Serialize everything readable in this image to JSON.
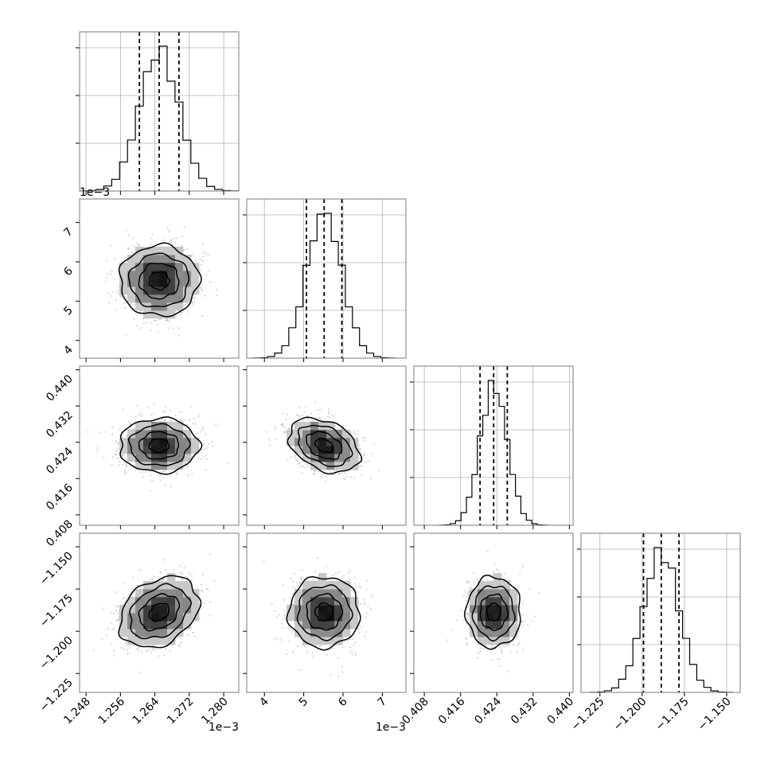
{
  "chart_data": {
    "type": "corner",
    "grid": true,
    "colors": {
      "ink": "#000000",
      "grid": "#b0b0b0",
      "samples": "#9a9a9a"
    },
    "parameters": [
      {
        "range": [
          1.2465,
          1.2835
        ],
        "mean": 1.265,
        "sd": 0.0046,
        "quantiles": [
          1.2604,
          1.265,
          1.2696
        ],
        "ticks": [
          1.248,
          1.256,
          1.264,
          1.272,
          1.28
        ],
        "tick_labels": [
          "1.248",
          "1.256",
          "1.264",
          "1.272",
          "1.280"
        ],
        "offset_text": "1e−3"
      },
      {
        "range": [
          3.55,
          7.6
        ],
        "mean": 5.52,
        "sd": 0.45,
        "quantiles": [
          5.07,
          5.52,
          5.97
        ],
        "ticks": [
          4,
          5,
          6,
          7
        ],
        "tick_labels": [
          "4",
          "5",
          "6",
          "7"
        ],
        "offset_text": "1e−3"
      },
      {
        "range": [
          0.4057,
          0.4408
        ],
        "mean": 0.4233,
        "sd": 0.003,
        "quantiles": [
          0.4203,
          0.4233,
          0.4263
        ],
        "ticks": [
          0.408,
          0.416,
          0.424,
          0.432,
          0.44
        ],
        "tick_labels": [
          "0.408",
          "0.416",
          "0.424",
          "0.432",
          "0.440"
        ]
      },
      {
        "range": [
          -1.2362,
          -1.142
        ],
        "mean": -1.1887,
        "sd": 0.0105,
        "quantiles": [
          -1.1992,
          -1.1887,
          -1.1782
        ],
        "ticks": [
          -1.225,
          -1.2,
          -1.175,
          -1.15
        ],
        "tick_labels": [
          "−1.225",
          "−1.200",
          "−1.175",
          "−1.150"
        ]
      }
    ],
    "correlations": [
      [
        1.0,
        0.0,
        0.0,
        0.3
      ],
      [
        0.0,
        1.0,
        -0.35,
        0.0
      ],
      [
        0.0,
        -0.35,
        1.0,
        0.0
      ],
      [
        0.3,
        0.0,
        0.0,
        1.0
      ]
    ],
    "contour_levels_sigma": [
      0.5,
      1.0,
      1.5,
      2.0
    ],
    "histogram_bins": 20
  }
}
